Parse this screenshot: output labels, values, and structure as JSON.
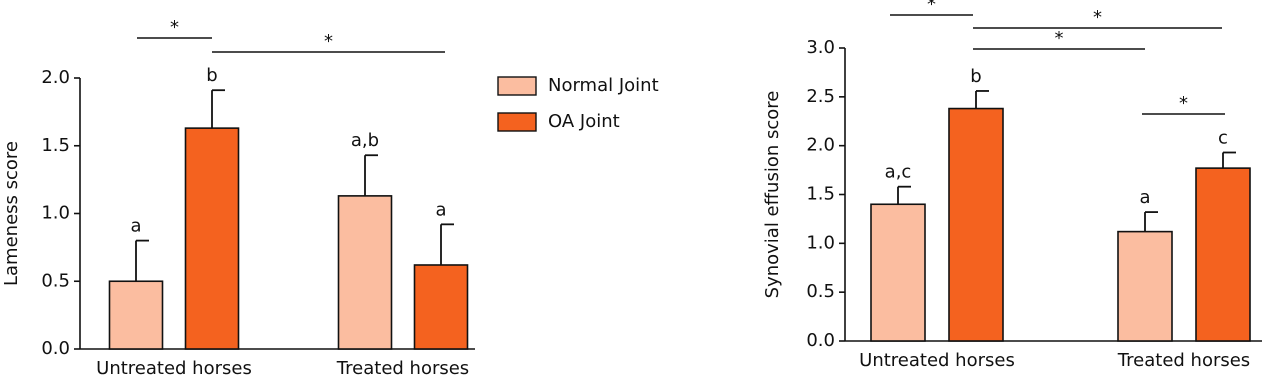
{
  "chart_data": [
    {
      "type": "bar",
      "y_label": "Lameness score",
      "categories": [
        "Untreated horses",
        "Treated horses"
      ],
      "series": [
        {
          "name": "Normal Joint",
          "color": "#fbbda0",
          "values": [
            0.5,
            1.13
          ],
          "errors": [
            0.3,
            0.3
          ],
          "value_labels": [
            "a",
            "a,b"
          ]
        },
        {
          "name": "OA Joint",
          "color": "#f4621f",
          "values": [
            1.63,
            0.62
          ],
          "errors": [
            0.28,
            0.3
          ],
          "value_labels": [
            "b",
            "a"
          ]
        }
      ],
      "ylim": [
        0,
        2.0
      ],
      "yticks": [
        {
          "value": 0,
          "label": "0.0"
        },
        {
          "value": 0.5,
          "label": "0.5"
        },
        {
          "value": 1,
          "label": "1.0"
        },
        {
          "value": 1.5,
          "label": "1.5"
        },
        {
          "value": 2,
          "label": "2.0"
        }
      ],
      "annotations": [
        "*",
        "*"
      ]
    },
    {
      "type": "bar",
      "y_label": "Synovial effusion score",
      "categories": [
        "Untreated horses",
        "Treated horses"
      ],
      "series": [
        {
          "color": "#fbbda0",
          "values": [
            1.4,
            1.12
          ],
          "errors": [
            0.18,
            0.2
          ],
          "value_labels": [
            "a,c",
            "a"
          ]
        },
        {
          "color": "#f4621f",
          "values": [
            2.38,
            1.77
          ],
          "errors": [
            0.18,
            0.16
          ],
          "value_labels": [
            "b",
            "c"
          ]
        }
      ],
      "ylim": [
        0,
        3.0
      ],
      "yticks": [
        {
          "value": 0,
          "label": "0.0"
        },
        {
          "value": 0.5,
          "label": "0.5"
        },
        {
          "value": 1,
          "label": "1.0"
        },
        {
          "value": 1.5,
          "label": "1.5"
        },
        {
          "value": 2,
          "label": "2.0"
        },
        {
          "value": 2.5,
          "label": "2.5"
        },
        {
          "value": 3,
          "label": "3.0"
        }
      ],
      "annotations": [
        "*",
        "*",
        "*",
        "*"
      ]
    }
  ]
}
